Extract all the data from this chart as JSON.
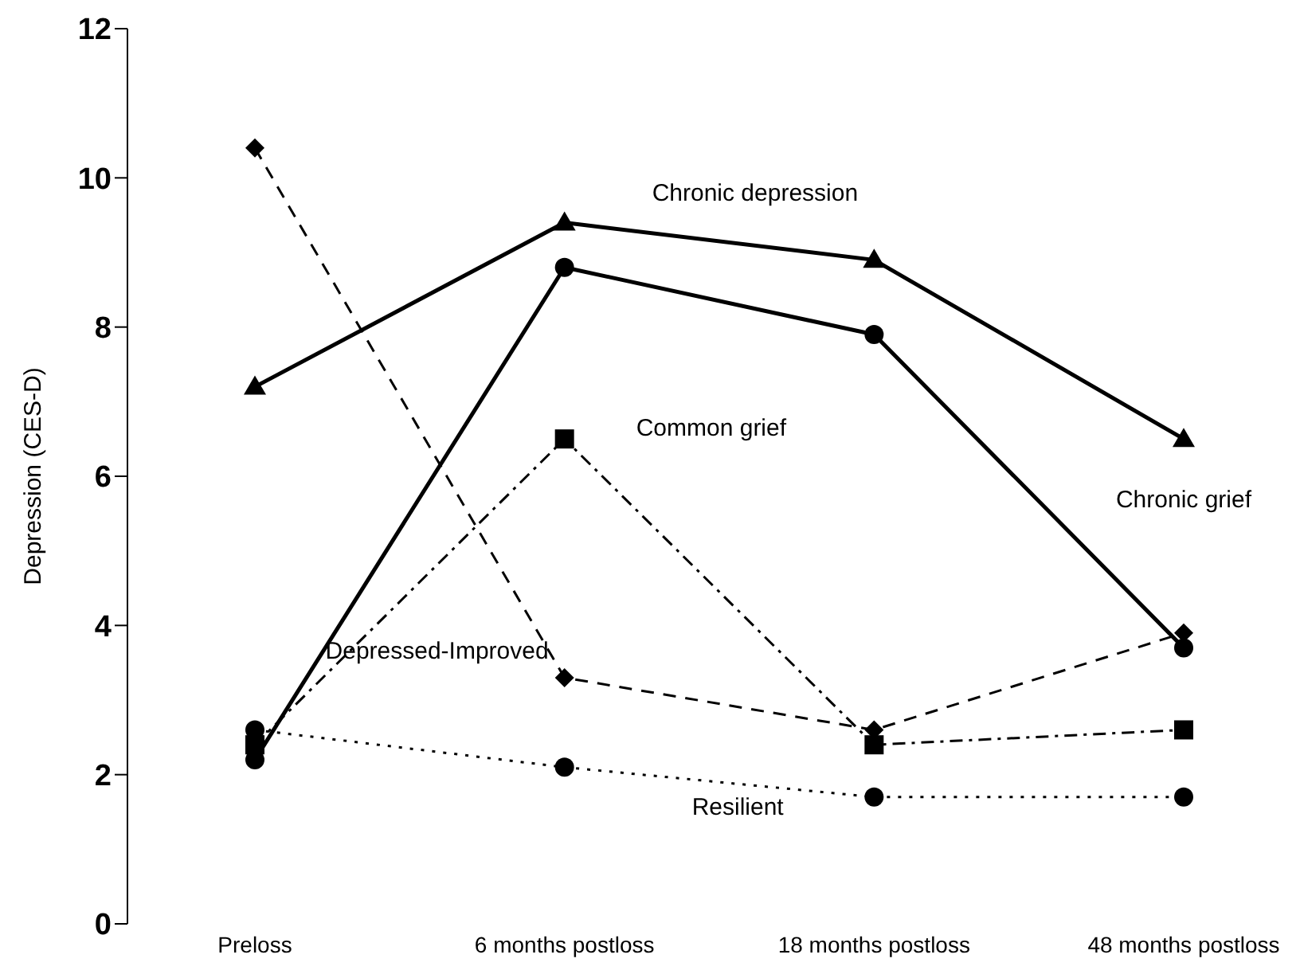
{
  "chart_data": {
    "type": "line",
    "ylabel": "Depression (CES-D)",
    "categories": [
      "Preloss",
      "6 months postloss",
      "18 months postloss",
      "48 months postloss"
    ],
    "ylim": [
      0,
      12
    ],
    "yticks": [
      0,
      2,
      4,
      6,
      8,
      10,
      12
    ],
    "grid": false,
    "legend": false,
    "series": [
      {
        "name": "Chronic depression",
        "color": "#000000",
        "marker": "triangle",
        "line_style": "solid",
        "values": [
          7.2,
          9.4,
          8.9,
          6.5
        ]
      },
      {
        "name": "Chronic grief",
        "color": "#000000",
        "marker": "circle",
        "line_style": "solid",
        "values": [
          2.2,
          8.8,
          7.9,
          3.7
        ]
      },
      {
        "name": "Common grief",
        "color": "#000000",
        "marker": "square",
        "line_style": "dashdot",
        "values": [
          2.4,
          6.5,
          2.4,
          2.6
        ]
      },
      {
        "name": "Depressed-Improved",
        "color": "#000000",
        "marker": "diamond",
        "line_style": "dashed",
        "values": [
          10.4,
          3.3,
          2.6,
          3.9
        ]
      },
      {
        "name": "Resilient",
        "color": "#000000",
        "marker": "circle",
        "line_style": "dotted",
        "values": [
          2.6,
          2.1,
          1.7,
          1.7
        ]
      }
    ]
  }
}
